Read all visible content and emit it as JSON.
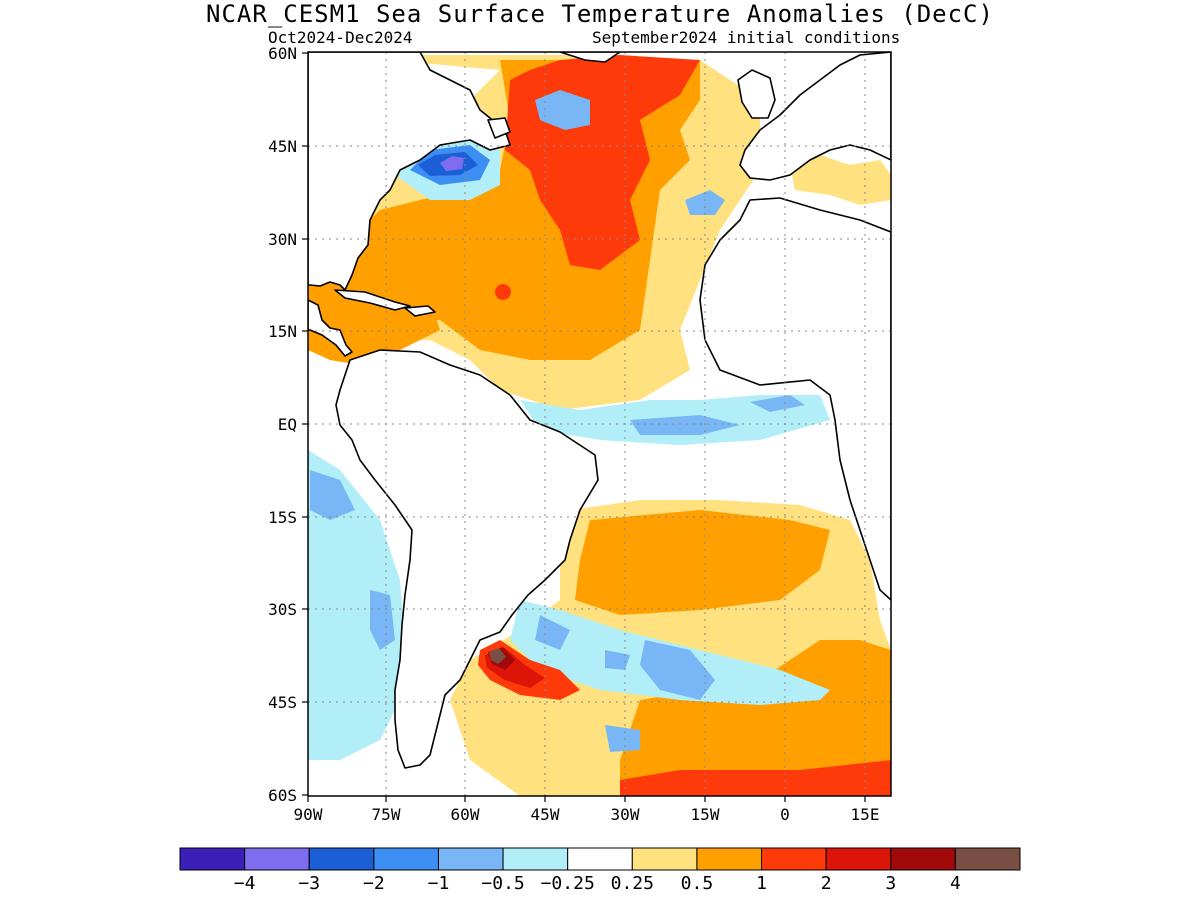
{
  "title": "NCAR_CESM1 Sea Surface Temperature Anomalies (DecC)",
  "period": "Oct2024-Dec2024",
  "init": "September2024 initial conditions",
  "lat_labels": [
    "60N",
    "45N",
    "30N",
    "15N",
    "EQ",
    "15S",
    "30S",
    "45S",
    "60S"
  ],
  "lon_labels": [
    "90W",
    "75W",
    "60W",
    "45W",
    "30W",
    "15W",
    "0",
    "15E"
  ],
  "legend": {
    "colors": [
      "#3b1fb8",
      "#7f6df0",
      "#1a5fd6",
      "#3c8ef2",
      "#78b6f6",
      "#b2eef7",
      "#ffffff",
      "#ffe27f",
      "#ffa000",
      "#ff3a0a",
      "#dd1408",
      "#a20a0a",
      "#7a4f43"
    ],
    "labels": [
      "−4",
      "−3",
      "−2",
      "−1",
      "−0.5",
      "−0.25",
      "0.25",
      "0.5",
      "1",
      "2",
      "3",
      "4"
    ]
  },
  "map": {
    "lat_range": [
      "60S",
      "60N"
    ],
    "lon_range": [
      "90W",
      "20E"
    ],
    "grid": "dotted",
    "colors": {
      "land": "#ffffff",
      "coast": "#000000",
      "warm1": "#ffe27f",
      "warm2": "#ffa000",
      "warm3": "#ff3a0a",
      "warm4": "#dd1408",
      "warm5": "#a20a0a",
      "warm6": "#7a4f43",
      "cool1": "#b2eef7",
      "cool2": "#78b6f6",
      "cool3": "#3c8ef2",
      "cool4": "#1a5fd6",
      "cool5": "#7f6df0"
    }
  }
}
